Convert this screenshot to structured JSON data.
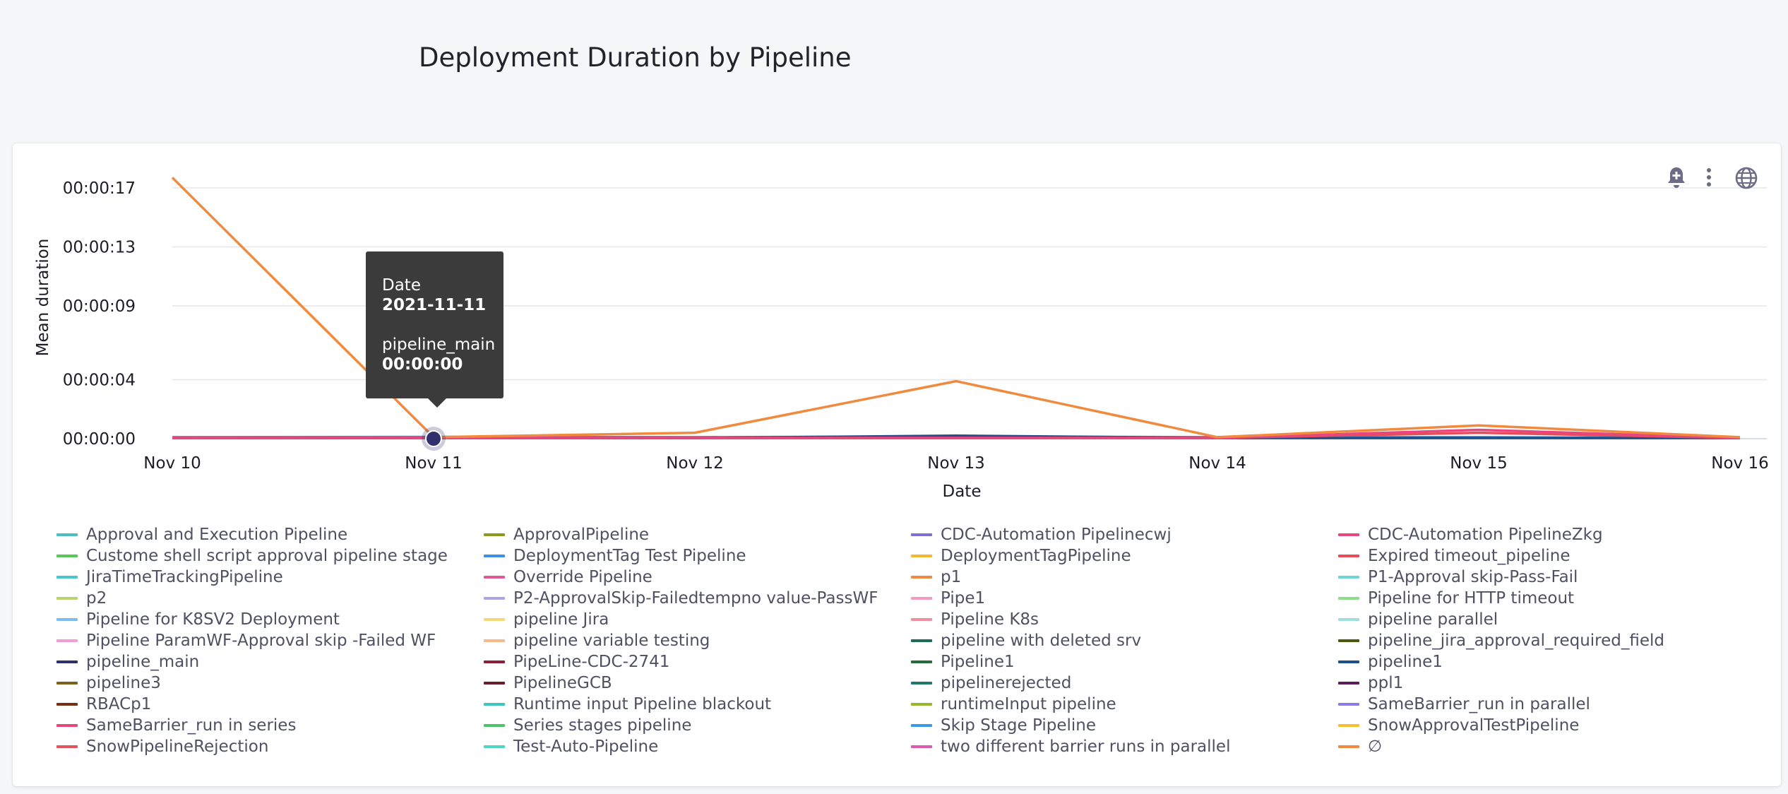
{
  "page": {
    "title": "Deployment Duration by Pipeline"
  },
  "toolbar": {
    "icons": [
      "bell-plus-icon",
      "more-vert-icon",
      "globe-icon"
    ]
  },
  "tooltip": {
    "date_label": "Date",
    "date_value": "2021-11-11",
    "series_label": "pipeline_main",
    "series_value": "00:00:00"
  },
  "chart_data": {
    "type": "line",
    "xlabel": "Date",
    "ylabel": "Mean duration",
    "x": [
      "2021-11-10",
      "2021-11-11",
      "2021-11-12",
      "2021-11-13",
      "2021-11-14",
      "2021-11-15",
      "2021-11-16"
    ],
    "x_ticks": [
      "Nov 10",
      "Nov 11",
      "Nov 12",
      "Nov 13",
      "Nov 14",
      "Nov 15",
      "Nov 16"
    ],
    "y_ticks": [
      {
        "label": "00:00:00",
        "seconds": 0
      },
      {
        "label": "00:00:04",
        "seconds": 4
      },
      {
        "label": "00:00:09",
        "seconds": 9
      },
      {
        "label": "00:00:13",
        "seconds": 13
      },
      {
        "label": "00:00:17",
        "seconds": 17
      }
    ],
    "ylim": [
      0,
      17.5
    ],
    "grid": true,
    "legend_position": "bottom",
    "series": [
      {
        "name": "Approval and Execution Pipeline",
        "color": "#47c1bf",
        "values": [
          0.05,
          0.05,
          0.05,
          0.05,
          0.05,
          0.05,
          0.05
        ]
      },
      {
        "name": "ApprovalPipeline",
        "color": "#8a9a1d",
        "values": [
          0.05,
          0.05,
          0.05,
          0.05,
          0.05,
          0.05,
          0.05
        ]
      },
      {
        "name": "CDC-Automation Pipelinecwj",
        "color": "#7c6fd6",
        "values": [
          0.05,
          0.05,
          0.05,
          0.05,
          0.05,
          0.05,
          0.05
        ]
      },
      {
        "name": "CDC-Automation PipelineZkg",
        "color": "#e8467c",
        "values": [
          0.05,
          0.05,
          0.05,
          0.05,
          0.05,
          0.6,
          0.05
        ]
      },
      {
        "name": "Custome shell script approval pipeline stage",
        "color": "#58c75a",
        "values": [
          0.05,
          0.05,
          0.05,
          0.05,
          0.05,
          0.05,
          0.05
        ]
      },
      {
        "name": "DeploymentTag Test Pipeline",
        "color": "#3e8fe8",
        "values": [
          0.1,
          0.12,
          0.1,
          0.15,
          0.1,
          0.1,
          0.05
        ]
      },
      {
        "name": "DeploymentTagPipeline",
        "color": "#f5b731",
        "values": [
          0.05,
          0.05,
          0.05,
          0.05,
          0.05,
          0.05,
          0.05
        ]
      },
      {
        "name": "Expired timeout_pipeline",
        "color": "#e74c5a",
        "values": [
          0.05,
          0.05,
          0.05,
          0.05,
          0.05,
          0.4,
          0.05
        ]
      },
      {
        "name": "JiraTimeTrackingPipeline",
        "color": "#45c7cc",
        "values": [
          0.05,
          0.05,
          0.05,
          0.05,
          0.05,
          0.05,
          0.05
        ]
      },
      {
        "name": "Override Pipeline",
        "color": "#e05a9a",
        "values": [
          0.05,
          0.05,
          0.05,
          0.05,
          0.05,
          0.05,
          0.05
        ]
      },
      {
        "name": "p1",
        "color": "#f08a3e",
        "values": [
          17.7,
          0.1,
          0.4,
          3.9,
          0.1,
          0.9,
          0.1
        ]
      },
      {
        "name": "P1-Approval skip-Pass-Fail",
        "color": "#6fd6d6",
        "values": [
          0.05,
          0.05,
          0.05,
          0.05,
          0.05,
          0.05,
          0.05
        ]
      },
      {
        "name": "p2",
        "color": "#b8d46a",
        "values": [
          0.05,
          0.05,
          0.05,
          0.05,
          0.05,
          0.05,
          0.05
        ]
      },
      {
        "name": "P2-ApprovalSkip-Failedtempno value-PassWF",
        "color": "#ada4e6",
        "values": [
          0.05,
          0.05,
          0.05,
          0.05,
          0.05,
          0.05,
          0.05
        ]
      },
      {
        "name": "Pipe1",
        "color": "#f29ac3",
        "values": [
          0.05,
          0.05,
          0.05,
          0.05,
          0.05,
          0.05,
          0.05
        ]
      },
      {
        "name": "Pipeline for HTTP timeout",
        "color": "#8ddd8f",
        "values": [
          0.05,
          0.05,
          0.05,
          0.05,
          0.05,
          0.05,
          0.05
        ]
      },
      {
        "name": "Pipeline for K8SV2 Deployment",
        "color": "#7cbcf2",
        "values": [
          0.05,
          0.05,
          0.05,
          0.05,
          0.05,
          0.05,
          0.05
        ]
      },
      {
        "name": "pipeline Jira",
        "color": "#f7d77a",
        "values": [
          0.05,
          0.05,
          0.05,
          0.05,
          0.05,
          0.05,
          0.05
        ]
      },
      {
        "name": "Pipeline K8s",
        "color": "#ef8fa0",
        "values": [
          0.05,
          0.05,
          0.05,
          0.05,
          0.05,
          0.05,
          0.05
        ]
      },
      {
        "name": "pipeline parallel",
        "color": "#9de0e0",
        "values": [
          0.05,
          0.05,
          0.05,
          0.05,
          0.05,
          0.05,
          0.05
        ]
      },
      {
        "name": "Pipeline ParamWF-Approval skip -Failed WF",
        "color": "#ef9fcf",
        "values": [
          0.05,
          0.05,
          0.05,
          0.05,
          0.05,
          0.05,
          0.05
        ]
      },
      {
        "name": "pipeline variable testing",
        "color": "#f5b98a",
        "values": [
          0.05,
          0.05,
          0.05,
          0.05,
          0.05,
          0.05,
          0.05
        ]
      },
      {
        "name": "pipeline with deleted srv",
        "color": "#1f6b5a",
        "values": [
          0.05,
          0.05,
          0.05,
          0.05,
          0.05,
          0.05,
          0.05
        ]
      },
      {
        "name": "pipeline_jira_approval_required_field",
        "color": "#4a5a12",
        "values": [
          0.05,
          0.05,
          0.05,
          0.05,
          0.05,
          0.05,
          0.05
        ]
      },
      {
        "name": "pipeline_main",
        "color": "#30306e",
        "values": [
          0.05,
          0.05,
          0.05,
          0.05,
          0.05,
          0.05,
          0.05
        ]
      },
      {
        "name": "PipeLine-CDC-2741",
        "color": "#8c1f3a",
        "values": [
          0.05,
          0.05,
          0.05,
          0.05,
          0.05,
          0.05,
          0.05
        ]
      },
      {
        "name": "Pipeline1",
        "color": "#236b3a",
        "values": [
          0.05,
          0.05,
          0.05,
          0.05,
          0.05,
          0.05,
          0.05
        ]
      },
      {
        "name": "pipeline1",
        "color": "#1e4f8a",
        "values": [
          0.05,
          0.05,
          0.05,
          0.2,
          0.05,
          0.05,
          0.05
        ]
      },
      {
        "name": "pipeline3",
        "color": "#7a621a",
        "values": [
          0.05,
          0.05,
          0.05,
          0.05,
          0.05,
          0.05,
          0.05
        ]
      },
      {
        "name": "PipelineGCB",
        "color": "#6a1e2a",
        "values": [
          0.05,
          0.05,
          0.05,
          0.05,
          0.05,
          0.05,
          0.05
        ]
      },
      {
        "name": "pipelinerejected",
        "color": "#24756a",
        "values": [
          0.05,
          0.05,
          0.05,
          0.05,
          0.05,
          0.05,
          0.05
        ]
      },
      {
        "name": "ppl1",
        "color": "#5a1f5a",
        "values": [
          0.05,
          0.05,
          0.05,
          0.05,
          0.05,
          0.05,
          0.05
        ]
      },
      {
        "name": "RBACp1",
        "color": "#7a2e14",
        "values": [
          0.05,
          0.05,
          0.05,
          0.05,
          0.05,
          0.05,
          0.05
        ]
      },
      {
        "name": "Runtime input Pipeline blackout",
        "color": "#3ec6c0",
        "values": [
          0.05,
          0.05,
          0.05,
          0.05,
          0.05,
          0.05,
          0.05
        ]
      },
      {
        "name": "runtimeInput pipeline",
        "color": "#94b92a",
        "values": [
          0.05,
          0.05,
          0.05,
          0.05,
          0.05,
          0.05,
          0.05
        ]
      },
      {
        "name": "SameBarrier_run in parallel",
        "color": "#8a7be6",
        "values": [
          0.05,
          0.05,
          0.05,
          0.05,
          0.05,
          0.05,
          0.05
        ]
      },
      {
        "name": "SameBarrier_run in series",
        "color": "#e8457f",
        "values": [
          0.05,
          0.05,
          0.05,
          0.05,
          0.05,
          0.05,
          0.05
        ]
      },
      {
        "name": "Series stages pipeline",
        "color": "#4ec468",
        "values": [
          0.05,
          0.05,
          0.05,
          0.05,
          0.05,
          0.05,
          0.05
        ]
      },
      {
        "name": "Skip Stage Pipeline",
        "color": "#3b99e8",
        "values": [
          0.05,
          0.05,
          0.05,
          0.05,
          0.05,
          0.05,
          0.05
        ]
      },
      {
        "name": "SnowApprovalTestPipeline",
        "color": "#f7c02e",
        "values": [
          0.05,
          0.05,
          0.05,
          0.05,
          0.05,
          0.05,
          0.05
        ]
      },
      {
        "name": "SnowPipelineRejection",
        "color": "#e2545a",
        "values": [
          0.05,
          0.05,
          0.05,
          0.05,
          0.05,
          0.05,
          0.05
        ]
      },
      {
        "name": "Test-Auto-Pipeline",
        "color": "#4fd6c2",
        "values": [
          0.05,
          0.05,
          0.05,
          0.05,
          0.05,
          0.05,
          0.05
        ]
      },
      {
        "name": "two different barrier runs in parallel",
        "color": "#d95cb0",
        "values": [
          0.05,
          0.05,
          0.05,
          0.05,
          0.05,
          0.05,
          0.05
        ]
      },
      {
        "name": "∅",
        "color": "#f08a3e",
        "values": [
          0.05,
          0.05,
          0.05,
          0.05,
          0.05,
          0.05,
          0.05
        ]
      }
    ],
    "highlight": {
      "series": "pipeline_main",
      "x": "2021-11-11",
      "y": 0
    }
  }
}
